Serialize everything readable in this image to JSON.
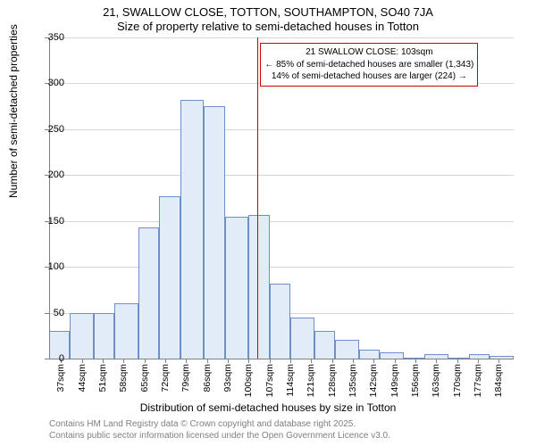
{
  "title_line1": "21, SWALLOW CLOSE, TOTTON, SOUTHAMPTON, SO40 7JA",
  "title_line2": "Size of property relative to semi-detached houses in Totton",
  "y_axis_label": "Number of semi-detached properties",
  "x_axis_label": "Distribution of semi-detached houses by size in Totton",
  "footer_line1": "Contains HM Land Registry data © Crown copyright and database right 2025.",
  "footer_line2": "Contains public sector information licensed under the Open Government Licence v3.0.",
  "annotation": {
    "line1": "21 SWALLOW CLOSE: 103sqm",
    "line2": "← 85% of semi-detached houses are smaller (1,343)",
    "line3": "14% of semi-detached houses are larger (224) →",
    "border_color": "#cc0000"
  },
  "chart": {
    "type": "histogram",
    "ylim": [
      0,
      350
    ],
    "ytick_step": 50,
    "x_range_start": 33,
    "x_range_end": 189,
    "x_tick_start": 37,
    "x_tick_step": 7,
    "marker_x": 103,
    "marker_color": "#cc0000",
    "bar_fill": "#e2ebf8",
    "bar_stroke": "#6f90c7",
    "grid_color": "#d6d6d6",
    "axis_color": "#808080",
    "background_color": "#ffffff",
    "bars": [
      {
        "x_start": 33,
        "x_end": 40,
        "value": 30
      },
      {
        "x_start": 40,
        "x_end": 48,
        "value": 50
      },
      {
        "x_start": 48,
        "x_end": 55,
        "value": 50
      },
      {
        "x_start": 55,
        "x_end": 63,
        "value": 60
      },
      {
        "x_start": 63,
        "x_end": 70,
        "value": 143
      },
      {
        "x_start": 70,
        "x_end": 77,
        "value": 177
      },
      {
        "x_start": 77,
        "x_end": 85,
        "value": 282
      },
      {
        "x_start": 85,
        "x_end": 92,
        "value": 275
      },
      {
        "x_start": 92,
        "x_end": 100,
        "value": 155
      },
      {
        "x_start": 100,
        "x_end": 107,
        "value": 157
      },
      {
        "x_start": 107,
        "x_end": 114,
        "value": 82
      },
      {
        "x_start": 114,
        "x_end": 122,
        "value": 45
      },
      {
        "x_start": 122,
        "x_end": 129,
        "value": 30
      },
      {
        "x_start": 129,
        "x_end": 137,
        "value": 20
      },
      {
        "x_start": 137,
        "x_end": 144,
        "value": 10
      },
      {
        "x_start": 144,
        "x_end": 152,
        "value": 7
      },
      {
        "x_start": 152,
        "x_end": 159,
        "value": 0
      },
      {
        "x_start": 159,
        "x_end": 167,
        "value": 5
      },
      {
        "x_start": 167,
        "x_end": 174,
        "value": 0
      },
      {
        "x_start": 174,
        "x_end": 181,
        "value": 5
      },
      {
        "x_start": 181,
        "x_end": 189,
        "value": 3
      }
    ]
  }
}
